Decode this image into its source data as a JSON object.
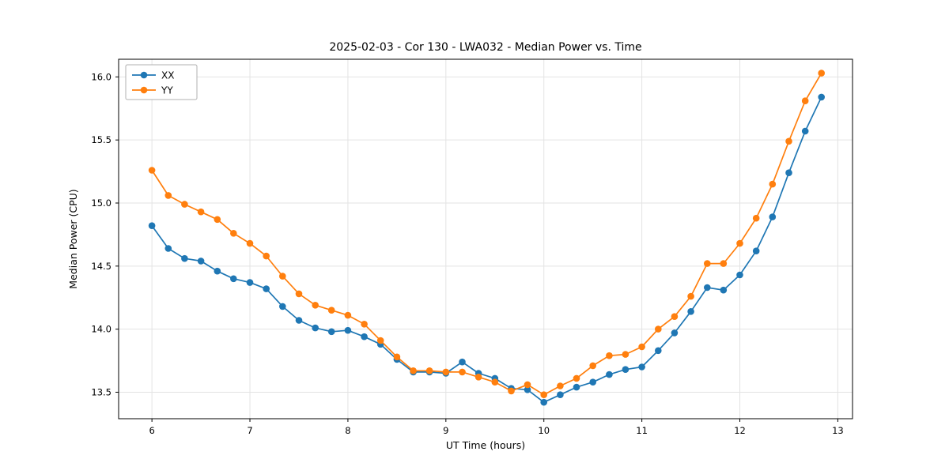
{
  "chart_data": {
    "type": "line",
    "title": "2025-02-03 - Cor 130 - LWA032 - Median Power vs. Time",
    "xlabel": "UT Time (hours)",
    "ylabel": "Median Power (CPU)",
    "grid": true,
    "legend_position": "upper left",
    "xlim": [
      5.66,
      13.15
    ],
    "ylim": [
      13.29,
      16.14
    ],
    "x_ticks": {
      "values": [
        6,
        7,
        8,
        9,
        10,
        11,
        12,
        13
      ],
      "labels": [
        "6",
        "7",
        "8",
        "9",
        "10",
        "11",
        "12",
        "13"
      ]
    },
    "y_ticks": {
      "values": [
        13.5,
        14.0,
        14.5,
        15.0,
        15.5,
        16.0
      ],
      "labels": [
        "13.5",
        "14.0",
        "14.5",
        "15.0",
        "15.5",
        "16.0"
      ]
    },
    "x": [
      6.0,
      6.167,
      6.333,
      6.5,
      6.667,
      6.833,
      7.0,
      7.167,
      7.333,
      7.5,
      7.667,
      7.833,
      8.0,
      8.167,
      8.333,
      8.5,
      8.667,
      8.833,
      9.0,
      9.167,
      9.333,
      9.5,
      9.667,
      9.833,
      10.0,
      10.167,
      10.333,
      10.5,
      10.667,
      10.833,
      11.0,
      11.167,
      11.333,
      11.5,
      11.667,
      11.833,
      12.0,
      12.167,
      12.333,
      12.5,
      12.667,
      12.833
    ],
    "series": [
      {
        "name": "XX",
        "color": "#1f77b4",
        "values": [
          14.82,
          14.64,
          14.56,
          14.54,
          14.46,
          14.4,
          14.37,
          14.32,
          14.18,
          14.07,
          14.01,
          13.98,
          13.99,
          13.94,
          13.88,
          13.76,
          13.66,
          13.66,
          13.65,
          13.74,
          13.65,
          13.61,
          13.53,
          13.52,
          13.42,
          13.48,
          13.54,
          13.58,
          13.64,
          13.68,
          13.7,
          13.83,
          13.97,
          14.14,
          14.33,
          14.31,
          14.43,
          14.62,
          14.89,
          15.24,
          15.57,
          15.84
        ]
      },
      {
        "name": "YY",
        "color": "#ff7f0e",
        "values": [
          15.26,
          15.06,
          14.99,
          14.93,
          14.87,
          14.76,
          14.68,
          14.58,
          14.42,
          14.28,
          14.19,
          14.15,
          14.11,
          14.04,
          13.91,
          13.78,
          13.67,
          13.67,
          13.66,
          13.66,
          13.62,
          13.58,
          13.51,
          13.56,
          13.48,
          13.55,
          13.61,
          13.71,
          13.79,
          13.8,
          13.86,
          14.0,
          14.1,
          14.26,
          14.52,
          14.52,
          14.68,
          14.88,
          15.15,
          15.49,
          15.81,
          16.03
        ]
      }
    ]
  }
}
